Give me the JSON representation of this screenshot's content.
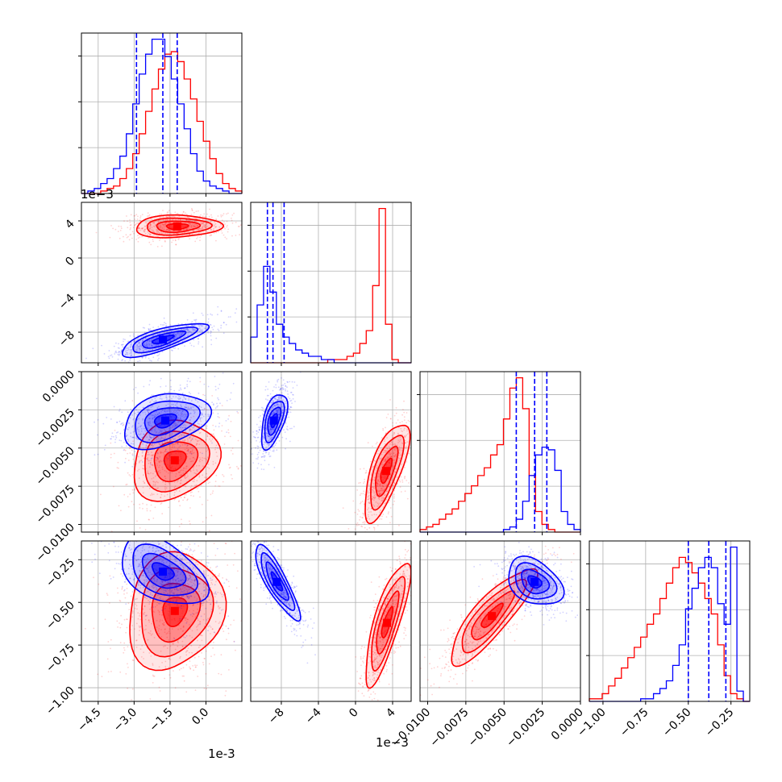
{
  "chart_data": {
    "type": "corner",
    "colors": {
      "series_a": "#0000ff",
      "series_b": "#ff0000",
      "grid": "#b0b0b0",
      "frame": "#000000"
    },
    "grid": true,
    "series": [
      {
        "color": "#0000ff",
        "quantile_line_style": "dashed"
      },
      {
        "color": "#ff0000"
      }
    ],
    "params": [
      {
        "index": 0,
        "range": [
          -0.0052,
          0.0015
        ],
        "scale_note": "1e-3",
        "ticks": [
          -0.0045,
          -0.003,
          -0.0015,
          0.0
        ],
        "tick_labels": [
          "−4.5",
          "−3.0",
          "−1.5",
          "0.0"
        ],
        "quantiles_blue": [
          -0.0029,
          -0.0018,
          -0.0012
        ]
      },
      {
        "index": 1,
        "range": [
          -0.0113,
          0.006
        ],
        "scale_note": "1e−3",
        "ticks": [
          -0.008,
          -0.004,
          0.0,
          0.004
        ],
        "tick_labels": [
          "−8",
          "−4",
          "0",
          "4"
        ],
        "quantiles_blue": [
          -0.0095,
          -0.0089,
          -0.0077
        ]
      },
      {
        "index": 2,
        "range": [
          -0.0105,
          0.0
        ],
        "scale_note": "",
        "ticks": [
          -0.01,
          -0.0075,
          -0.005,
          -0.0025,
          0.0
        ],
        "tick_labels": [
          "−0.0100",
          "−0.0075",
          "−0.0050",
          "−0.0025",
          "0.0000"
        ],
        "quantiles_blue": [
          -0.0042,
          -0.003,
          -0.0022
        ]
      },
      {
        "index": 3,
        "range": [
          -1.08,
          -0.14
        ],
        "scale_note": "",
        "ticks": [
          -1.0,
          -0.75,
          -0.5,
          -0.25
        ],
        "tick_labels": [
          "−1.00",
          "−0.75",
          "−0.50",
          "−0.25"
        ],
        "quantiles_blue": [
          -0.5,
          -0.38,
          -0.28
        ]
      }
    ],
    "histograms": [
      {
        "param": 0,
        "blue": [
          0,
          1,
          2,
          4,
          6,
          10,
          15,
          24,
          36,
          48,
          56,
          62,
          62,
          55,
          46,
          36,
          26,
          16,
          9,
          5,
          3,
          2,
          1,
          0,
          0
        ],
        "red": [
          0,
          0,
          0,
          1,
          2,
          3,
          6,
          10,
          16,
          24,
          33,
          42,
          50,
          56,
          57,
          53,
          46,
          38,
          29,
          21,
          14,
          8,
          4,
          2,
          1
        ]
      },
      {
        "param": 1,
        "blue": [
          8,
          18,
          30,
          22,
          12,
          8,
          6,
          4,
          3,
          2,
          2,
          1,
          1,
          0,
          0,
          0,
          0,
          0,
          0,
          0,
          0,
          0,
          0,
          0,
          0
        ],
        "red": [
          0,
          0,
          0,
          0,
          0,
          0,
          0,
          0,
          0,
          0,
          0,
          0,
          1,
          1,
          1,
          2,
          3,
          6,
          10,
          24,
          48,
          12,
          1,
          0,
          0
        ]
      },
      {
        "param": 2,
        "blue": [
          0,
          0,
          0,
          0,
          0,
          0,
          0,
          0,
          0,
          0,
          0,
          0,
          0,
          1,
          2,
          5,
          12,
          22,
          30,
          33,
          32,
          24,
          8,
          3,
          1
        ],
        "red": [
          1,
          2,
          3,
          5,
          7,
          9,
          12,
          15,
          18,
          22,
          25,
          30,
          34,
          44,
          56,
          60,
          48,
          22,
          8,
          3,
          1,
          0,
          0,
          0,
          0
        ]
      },
      {
        "param": 3,
        "blue": [
          0,
          0,
          0,
          0,
          0,
          0,
          0,
          0,
          1,
          1,
          3,
          5,
          8,
          14,
          22,
          36,
          44,
          52,
          56,
          52,
          38,
          30,
          60,
          4,
          0
        ],
        "red": [
          1,
          1,
          3,
          6,
          9,
          13,
          17,
          21,
          25,
          30,
          34,
          40,
          46,
          52,
          56,
          54,
          50,
          46,
          40,
          34,
          22,
          10,
          3,
          1,
          0
        ]
      }
    ],
    "scatter_clusters": [
      {
        "x": 0,
        "y": 1,
        "blue": {
          "mean": [
            -0.0018,
            -0.0088
          ],
          "sd": [
            0.0009,
            0.0009
          ],
          "rho": 0.75
        },
        "red": {
          "mean": [
            -0.0012,
            0.0034
          ],
          "sd": [
            0.0009,
            0.0006
          ],
          "rho": 0.1
        }
      },
      {
        "x": 0,
        "y": 2,
        "blue": {
          "mean": [
            -0.0017,
            -0.0032
          ],
          "sd": [
            0.0009,
            0.0009
          ],
          "rho": 0.35
        },
        "red": {
          "mean": [
            -0.0013,
            -0.0058
          ],
          "sd": [
            0.0009,
            0.0013
          ],
          "rho": 0.2
        }
      },
      {
        "x": 0,
        "y": 3,
        "blue": {
          "mean": [
            -0.0018,
            -0.32
          ],
          "sd": [
            0.0009,
            0.1
          ],
          "rho": -0.45
        },
        "red": {
          "mean": [
            -0.0013,
            -0.55
          ],
          "sd": [
            0.001,
            0.17
          ],
          "rho": 0.15
        }
      },
      {
        "x": 1,
        "y": 2,
        "blue": {
          "mean": [
            -0.0088,
            -0.0032
          ],
          "sd": [
            0.0007,
            0.0009
          ],
          "rho": 0.55
        },
        "red": {
          "mean": [
            0.0033,
            -0.0065
          ],
          "sd": [
            0.0012,
            0.0016
          ],
          "rho": 0.7
        }
      },
      {
        "x": 1,
        "y": 3,
        "blue": {
          "mean": [
            -0.0085,
            -0.38
          ],
          "sd": [
            0.0012,
            0.11
          ],
          "rho": -0.85
        },
        "red": {
          "mean": [
            0.0034,
            -0.62
          ],
          "sd": [
            0.0012,
            0.18
          ],
          "rho": 0.8
        }
      },
      {
        "x": 2,
        "y": 3,
        "blue": {
          "mean": [
            -0.003,
            -0.38
          ],
          "sd": [
            0.0009,
            0.07
          ],
          "rho": -0.35
        },
        "red": {
          "mean": [
            -0.0058,
            -0.58
          ],
          "sd": [
            0.0014,
            0.14
          ],
          "rho": 0.85
        }
      }
    ],
    "contour_levels_sigma": [
      0.5,
      1.0,
      1.5,
      2.0
    ]
  }
}
